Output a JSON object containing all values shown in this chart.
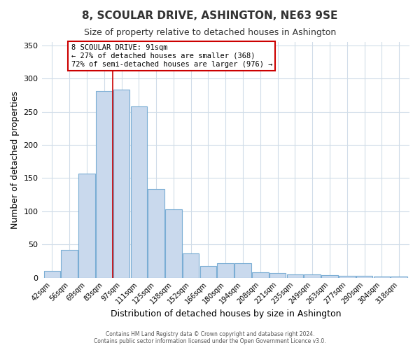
{
  "title": "8, SCOULAR DRIVE, ASHINGTON, NE63 9SE",
  "subtitle": "Size of property relative to detached houses in Ashington",
  "xlabel": "Distribution of detached houses by size in Ashington",
  "ylabel": "Number of detached properties",
  "bar_labels": [
    "42sqm",
    "56sqm",
    "69sqm",
    "83sqm",
    "97sqm",
    "111sqm",
    "125sqm",
    "138sqm",
    "152sqm",
    "166sqm",
    "180sqm",
    "194sqm",
    "208sqm",
    "221sqm",
    "235sqm",
    "249sqm",
    "263sqm",
    "277sqm",
    "290sqm",
    "304sqm",
    "318sqm"
  ],
  "bar_heights": [
    10,
    42,
    157,
    281,
    283,
    258,
    134,
    103,
    36,
    18,
    22,
    22,
    8,
    7,
    5,
    5,
    4,
    3,
    3,
    2,
    2
  ],
  "bar_color": "#c9d9ed",
  "bar_edge_color": "#7aadd4",
  "annotation_title": "8 SCOULAR DRIVE: 91sqm",
  "annotation_line1": "← 27% of detached houses are smaller (368)",
  "annotation_line2": "72% of semi-detached houses are larger (976) →",
  "annotation_box_color": "#ffffff",
  "annotation_box_edge": "#cc0000",
  "vertical_line_color": "#cc0000",
  "ylim": [
    0,
    355
  ],
  "yticks": [
    0,
    50,
    100,
    150,
    200,
    250,
    300,
    350
  ],
  "footer1": "Contains HM Land Registry data © Crown copyright and database right 2024.",
  "footer2": "Contains public sector information licensed under the Open Government Licence v3.0.",
  "background_color": "#ffffff",
  "grid_color": "#d0dce8",
  "title_fontsize": 11,
  "subtitle_fontsize": 9
}
